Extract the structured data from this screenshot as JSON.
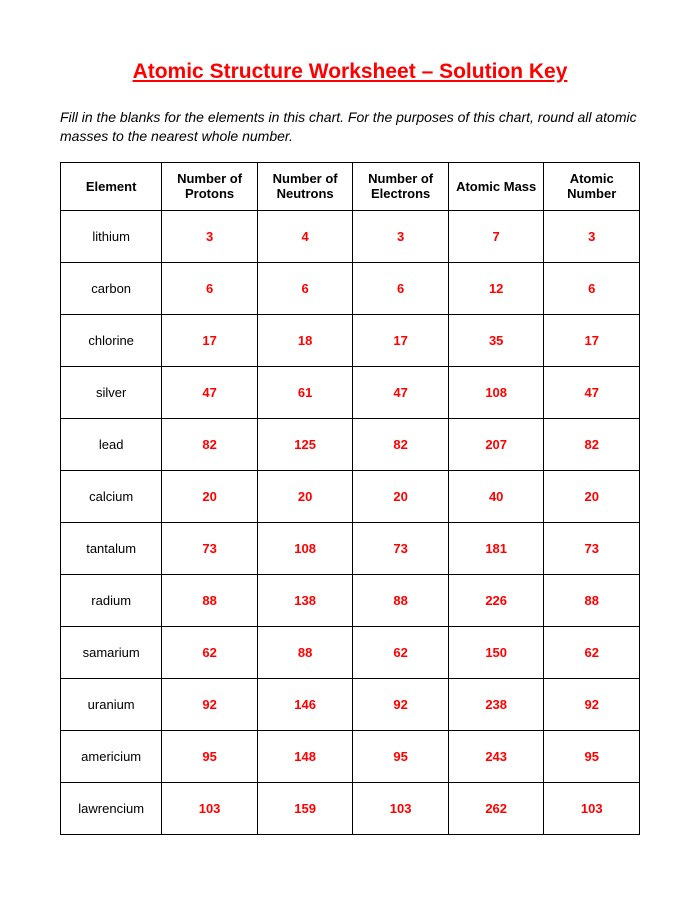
{
  "title": "Atomic Structure Worksheet – Solution Key",
  "instructions": "Fill in the blanks for the elements in this chart.  For the purposes of this chart, round all atomic masses to the nearest whole number.",
  "table": {
    "headers": {
      "element": "Element",
      "protons": "Number of Protons",
      "neutrons": "Number of Neutrons",
      "electrons": "Number of Electrons",
      "mass": "Atomic Mass",
      "number": "Atomic Number"
    },
    "rows": [
      {
        "element": "lithium",
        "protons": "3",
        "neutrons": "4",
        "electrons": "3",
        "mass": "7",
        "number": "3"
      },
      {
        "element": "carbon",
        "protons": "6",
        "neutrons": "6",
        "electrons": "6",
        "mass": "12",
        "number": "6"
      },
      {
        "element": "chlorine",
        "protons": "17",
        "neutrons": "18",
        "electrons": "17",
        "mass": "35",
        "number": "17"
      },
      {
        "element": "silver",
        "protons": "47",
        "neutrons": "61",
        "electrons": "47",
        "mass": "108",
        "number": "47"
      },
      {
        "element": "lead",
        "protons": "82",
        "neutrons": "125",
        "electrons": "82",
        "mass": "207",
        "number": "82"
      },
      {
        "element": "calcium",
        "protons": "20",
        "neutrons": "20",
        "electrons": "20",
        "mass": "40",
        "number": "20"
      },
      {
        "element": "tantalum",
        "protons": "73",
        "neutrons": "108",
        "electrons": "73",
        "mass": "181",
        "number": "73"
      },
      {
        "element": "radium",
        "protons": "88",
        "neutrons": "138",
        "electrons": "88",
        "mass": "226",
        "number": "88"
      },
      {
        "element": "samarium",
        "protons": "62",
        "neutrons": "88",
        "electrons": "62",
        "mass": "150",
        "number": "62"
      },
      {
        "element": "uranium",
        "protons": "92",
        "neutrons": "146",
        "electrons": "92",
        "mass": "238",
        "number": "92"
      },
      {
        "element": "americium",
        "protons": "95",
        "neutrons": "148",
        "electrons": "95",
        "mass": "243",
        "number": "95"
      },
      {
        "element": "lawrencium",
        "protons": "103",
        "neutrons": "159",
        "electrons": "103",
        "mass": "262",
        "number": "103"
      }
    ]
  },
  "colors": {
    "title_color": "#ff0000",
    "value_color": "#ff0000",
    "text_color": "#000000",
    "border_color": "#000000",
    "background": "#ffffff"
  }
}
